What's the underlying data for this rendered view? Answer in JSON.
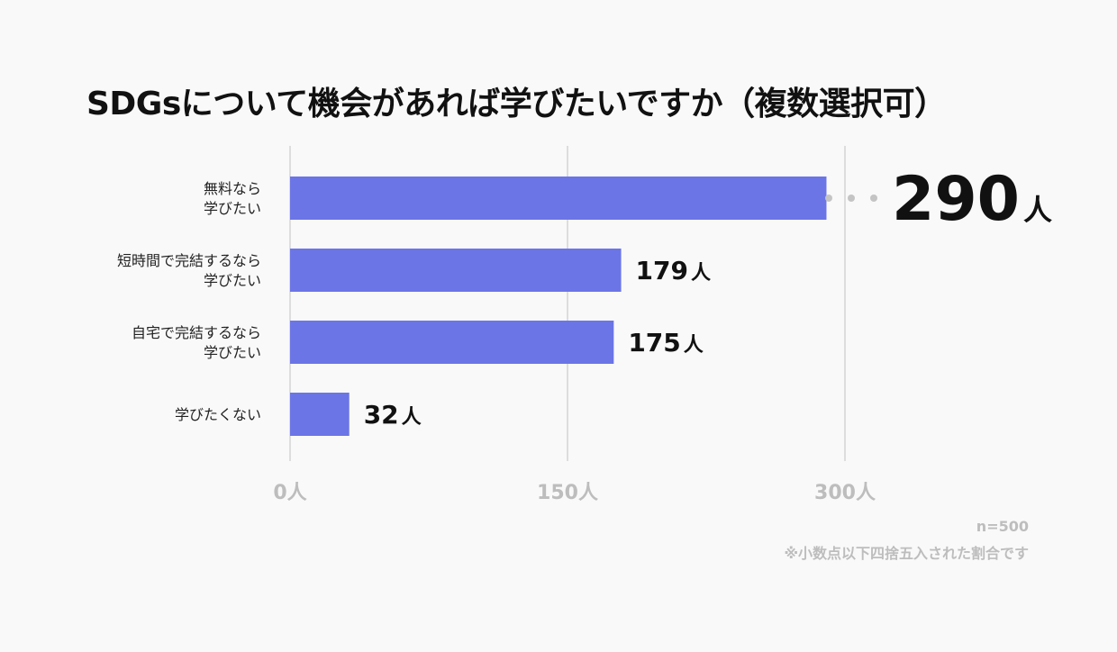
{
  "title": "SDGsについて機会があれば学びたいですか（複数選択可）",
  "sample_size": "n=500",
  "footnote": "※小数点以下四捨五入された割合です",
  "colors": {
    "bar": "#6b75e6",
    "grid": "#dddddd",
    "text": "#111111",
    "muted": "#bdbdbd"
  },
  "chart_data": {
    "type": "bar",
    "orientation": "horizontal",
    "title": "SDGsについて機会があれば学びたいですか（複数選択可）",
    "unit": "人",
    "categories": [
      [
        "無料なら",
        "学びたい"
      ],
      [
        "短時間で完結するなら",
        "学びたい"
      ],
      [
        "自宅で完結するなら",
        "学びたい"
      ],
      [
        "学びたくない"
      ]
    ],
    "values": [
      290,
      179,
      175,
      32
    ],
    "xlim": [
      0,
      300
    ],
    "ticks": [
      0,
      150,
      300
    ],
    "tick_labels": [
      "0人",
      "150人",
      "300人"
    ],
    "highlight_index": 0,
    "grid": true
  }
}
